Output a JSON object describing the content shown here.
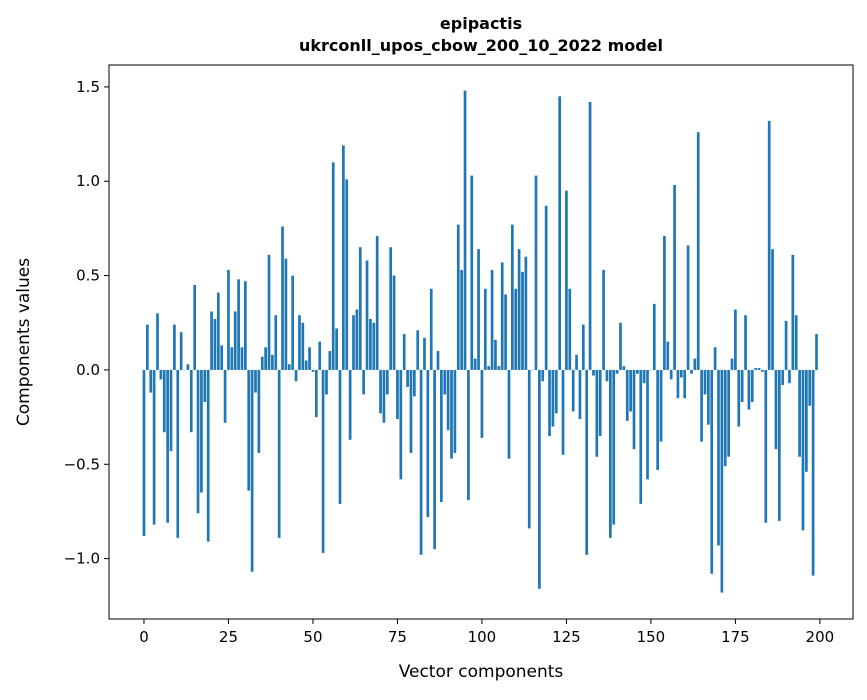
{
  "chart_data": {
    "type": "bar",
    "title_line1": "epipactis",
    "title_line2": "ukrconll_upos_cbow_200_10_2022 model",
    "xlabel": "Vector components",
    "ylabel": "Components values",
    "xlim": [
      -10.35,
      209.8
    ],
    "ylim": [
      -1.32,
      1.616
    ],
    "xticks": [
      0,
      25,
      50,
      75,
      100,
      125,
      150,
      175,
      200
    ],
    "xtick_labels": [
      "0",
      "25",
      "50",
      "75",
      "100",
      "125",
      "150",
      "175",
      "200"
    ],
    "yticks": [
      -1.0,
      -0.5,
      0.0,
      0.5,
      1.0,
      1.5
    ],
    "ytick_labels": [
      "−1.0",
      "−0.5",
      "0.0",
      "0.5",
      "1.0",
      "1.5"
    ],
    "grid": false,
    "bar_color": "#1f77b4",
    "values": [
      -0.88,
      0.24,
      -0.12,
      -0.82,
      0.3,
      -0.05,
      -0.33,
      -0.81,
      -0.43,
      0.24,
      -0.89,
      0.2,
      0.0,
      0.03,
      -0.33,
      0.45,
      -0.76,
      -0.65,
      -0.17,
      -0.91,
      0.31,
      0.27,
      0.41,
      0.13,
      -0.28,
      0.53,
      0.12,
      0.31,
      0.48,
      0.12,
      0.47,
      -0.64,
      -1.07,
      -0.12,
      -0.44,
      0.07,
      0.12,
      0.61,
      0.08,
      0.29,
      -0.89,
      0.76,
      0.59,
      0.03,
      0.5,
      -0.06,
      0.29,
      0.25,
      0.05,
      0.12,
      -0.01,
      -0.25,
      0.15,
      -0.97,
      -0.13,
      0.1,
      1.1,
      0.22,
      -0.71,
      1.19,
      1.01,
      -0.37,
      0.29,
      0.32,
      0.65,
      -0.13,
      0.58,
      0.27,
      0.25,
      0.71,
      -0.23,
      -0.28,
      -0.13,
      0.65,
      0.5,
      -0.26,
      -0.58,
      0.19,
      -0.09,
      -0.44,
      -0.14,
      0.21,
      -0.98,
      0.17,
      -0.78,
      0.43,
      -0.95,
      0.1,
      -0.7,
      -0.13,
      -0.32,
      -0.47,
      -0.44,
      0.77,
      0.53,
      1.48,
      -0.69,
      1.03,
      0.06,
      0.64,
      -0.36,
      0.43,
      0.02,
      0.53,
      0.16,
      0.02,
      0.57,
      0.4,
      -0.47,
      0.77,
      0.43,
      0.64,
      0.52,
      0.6,
      -0.84,
      0.0,
      1.03,
      -1.16,
      -0.06,
      0.87,
      -0.35,
      -0.3,
      -0.23,
      1.45,
      -0.45,
      0.95,
      0.43,
      -0.22,
      0.08,
      -0.26,
      0.24,
      -0.98,
      1.42,
      -0.03,
      -0.46,
      -0.35,
      0.53,
      -0.06,
      -0.89,
      -0.82,
      -0.02,
      0.25,
      0.02,
      -0.27,
      -0.22,
      -0.42,
      -0.02,
      -0.71,
      -0.07,
      -0.58,
      0.0,
      0.35,
      -0.53,
      -0.38,
      0.71,
      0.15,
      -0.05,
      0.98,
      -0.15,
      -0.04,
      -0.15,
      0.66,
      -0.02,
      0.06,
      1.26,
      -0.38,
      -0.13,
      -0.29,
      -1.08,
      0.12,
      -0.93,
      -1.18,
      -0.51,
      -0.46,
      0.06,
      0.32,
      -0.3,
      -0.17,
      0.29,
      -0.21,
      -0.17,
      0.01,
      0.01,
      -0.01,
      -0.81,
      1.32,
      0.64,
      -0.42,
      -0.8,
      -0.08,
      0.26,
      -0.07,
      0.61,
      0.29,
      -0.46,
      -0.85,
      -0.54,
      -0.19,
      -1.09,
      0.19
    ]
  }
}
